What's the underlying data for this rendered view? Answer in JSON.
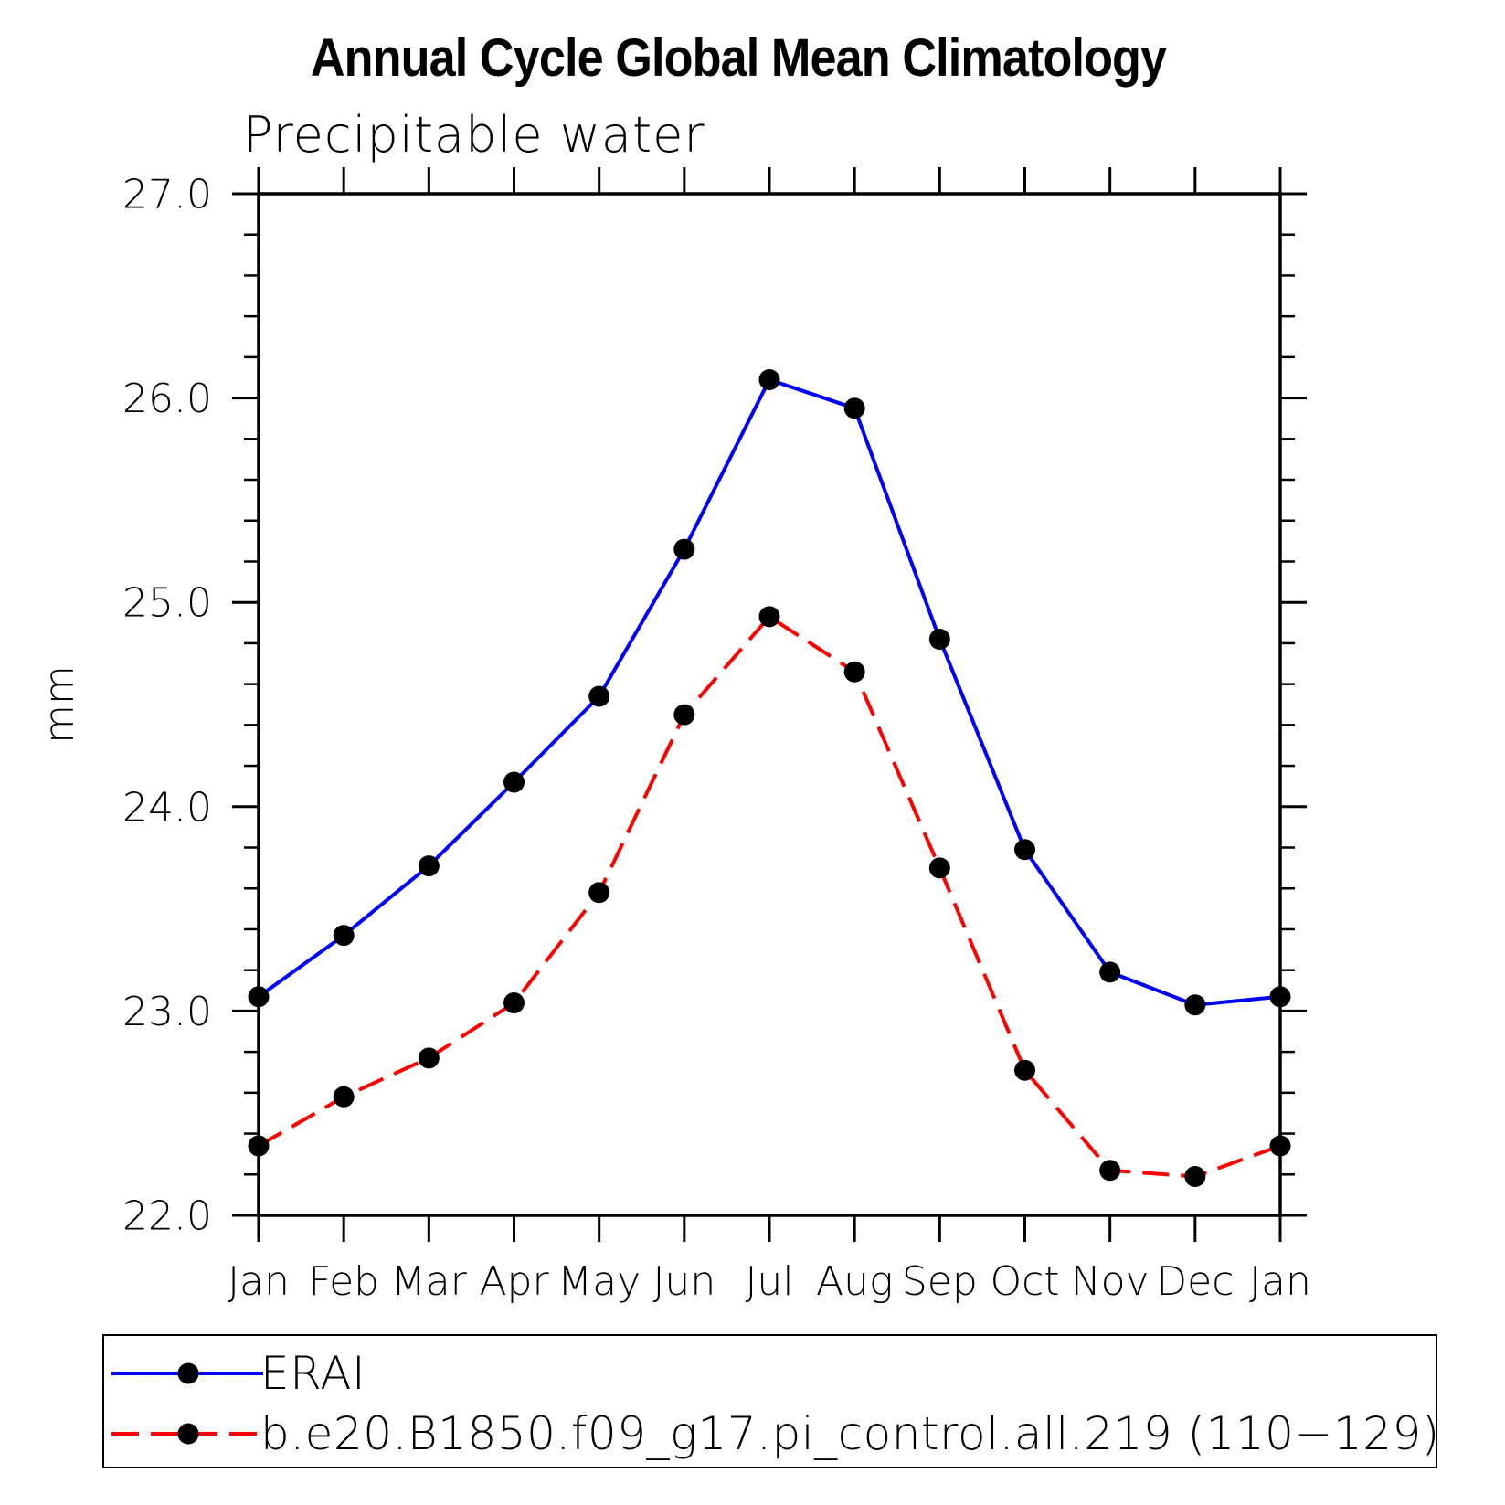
{
  "chart_data": {
    "type": "line",
    "title": "Annual Cycle Global Mean Climatology",
    "subtitle": "Precipitable water",
    "ylabel": "mm",
    "xlabel": "",
    "categories": [
      "Jan",
      "Feb",
      "Mar",
      "Apr",
      "May",
      "Jun",
      "Jul",
      "Aug",
      "Sep",
      "Oct",
      "Nov",
      "Dec",
      "Jan"
    ],
    "ylim": [
      22.0,
      27.0
    ],
    "ytick_interval": 1.0,
    "ytick_minor_interval": 0.2,
    "ytick_labels": [
      "22.0",
      "23.0",
      "24.0",
      "25.0",
      "26.0",
      "27.0"
    ],
    "grid": false,
    "legend_position": "bottom-outside",
    "axis_color": "#000000",
    "marker_color": "#000000",
    "series": [
      {
        "name": "ERAI",
        "color": "#0000ff",
        "line_style": "solid",
        "marker": "circle",
        "values": [
          23.07,
          23.37,
          23.71,
          24.12,
          24.54,
          25.26,
          26.09,
          25.95,
          24.82,
          23.79,
          23.19,
          23.03,
          23.07
        ]
      },
      {
        "name": "b.e20.B1850.f09_g17.pi_control.all.219 (110−129)",
        "color": "#ff0000",
        "line_style": "dashed",
        "marker": "circle",
        "values": [
          22.34,
          22.58,
          22.77,
          23.04,
          23.58,
          24.45,
          24.93,
          24.66,
          23.7,
          22.71,
          22.22,
          22.19,
          22.34
        ]
      }
    ]
  }
}
